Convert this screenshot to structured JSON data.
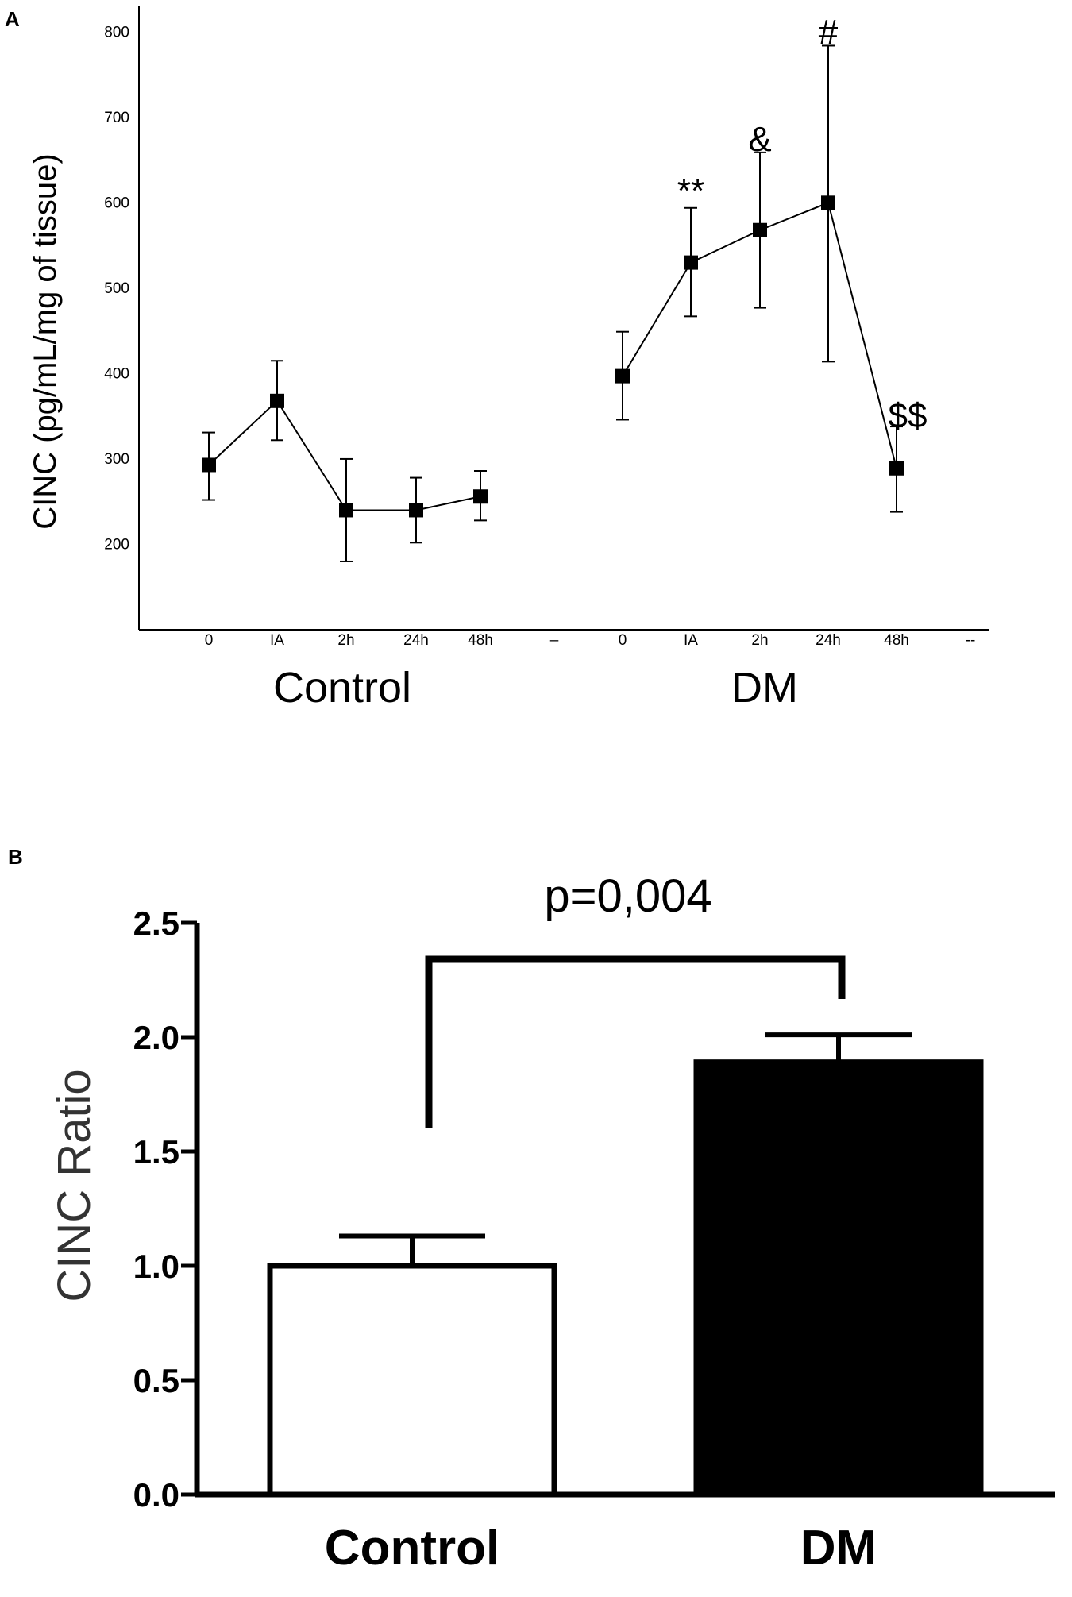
{
  "chart_data": [
    {
      "panel": "A",
      "type": "line",
      "ylabel": "CINC (pg/mL/mg of tissue)",
      "ylim": [
        100,
        830
      ],
      "yticks": [
        200,
        300,
        400,
        500,
        600,
        700,
        800
      ],
      "x_tick_labels": [
        "0",
        "IA",
        "2h",
        "24h",
        "48h",
        "–",
        "0",
        "IA",
        "2h",
        "24h",
        "48h",
        "--"
      ],
      "series": [
        {
          "group": "Control",
          "x": [
            "0",
            "IA",
            "2h",
            "24h",
            "48h"
          ],
          "values": [
            293,
            368,
            240,
            240,
            256
          ],
          "err_low": [
            252,
            322,
            180,
            202,
            228
          ],
          "err_high": [
            331,
            415,
            300,
            278,
            286
          ]
        },
        {
          "group": "DM",
          "x": [
            "0",
            "IA",
            "2h",
            "24h",
            "48h"
          ],
          "values": [
            397,
            530,
            568,
            600,
            289
          ],
          "err_low": [
            346,
            467,
            477,
            414,
            238
          ],
          "err_high": [
            449,
            594,
            659,
            784,
            338
          ]
        }
      ],
      "annotations": [
        {
          "group": "DM",
          "x": "IA",
          "text": "**"
        },
        {
          "group": "DM",
          "x": "2h",
          "text": "&"
        },
        {
          "group": "DM",
          "x": "24h",
          "text": "#"
        },
        {
          "group": "DM",
          "x": "48h",
          "text": "$$"
        }
      ],
      "group_labels": [
        "Control",
        "DM"
      ]
    },
    {
      "panel": "B",
      "type": "bar",
      "ylabel": "CINC Ratio",
      "categories": [
        "Control",
        "DM"
      ],
      "values": [
        1.0,
        1.89
      ],
      "err_high": [
        1.13,
        2.01
      ],
      "bar_colors": [
        "#ffffff",
        "#000000"
      ],
      "ylim": [
        0,
        2.5
      ],
      "yticks": [
        "0.0",
        "0.5",
        "1.0",
        "1.5",
        "2.0",
        "2.5"
      ],
      "significance": "p=0,004"
    }
  ]
}
